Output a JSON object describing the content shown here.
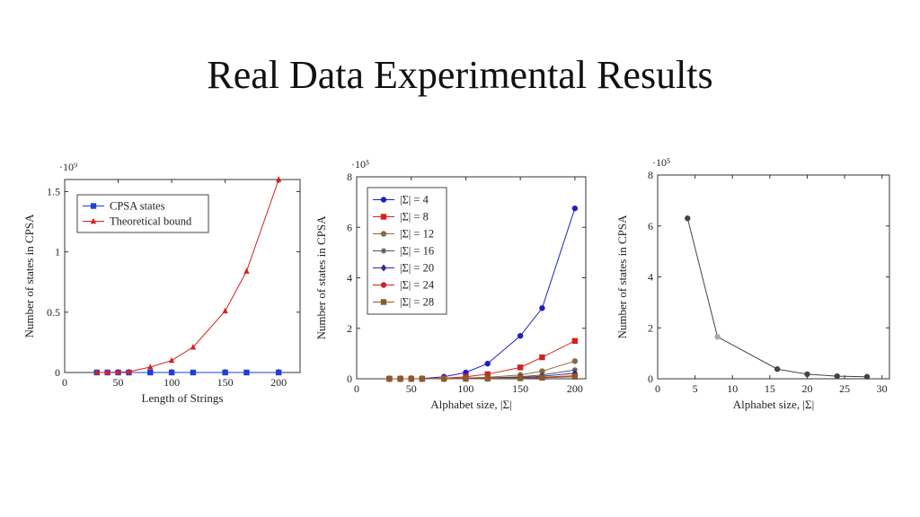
{
  "title": "Real Data Experimental Results",
  "chart_data": [
    {
      "type": "line",
      "xlabel": "Length of Strings",
      "ylabel": "Number of states in CPSA",
      "exponent_label": "·10⁹",
      "xlim": [
        0,
        220
      ],
      "ylim": [
        0,
        1.6
      ],
      "xticks": [
        0,
        50,
        100,
        150,
        200
      ],
      "xtick_labels": [
        "0",
        "50",
        "100",
        "150",
        "200"
      ],
      "yticks": [
        0,
        0.5,
        1,
        1.5
      ],
      "ytick_labels": [
        "0",
        "0.5",
        "1",
        "1.5"
      ],
      "legend_position": "top-left",
      "series": [
        {
          "name": "CPSA states",
          "color": "#1f3fd6",
          "marker": "square",
          "x": [
            30,
            40,
            50,
            60,
            80,
            100,
            120,
            150,
            170,
            200
          ],
          "y": [
            0,
            0,
            0,
            0,
            0,
            0,
            0,
            0,
            0,
            0
          ]
        },
        {
          "name": "Theoretical bound",
          "color": "#d42020",
          "marker": "triangle",
          "x": [
            30,
            40,
            50,
            60,
            80,
            100,
            120,
            150,
            170,
            200
          ],
          "y": [
            0.0004,
            0.0013,
            0.003,
            0.0064,
            0.0448,
            0.1,
            0.21,
            0.51,
            0.84,
            1.6
          ]
        }
      ]
    },
    {
      "type": "line",
      "xlabel": "Alphabet size, |Σ|",
      "ylabel": "Number of states in CPSA",
      "exponent_label": "·10⁵",
      "xlim": [
        0,
        210
      ],
      "ylim": [
        0,
        8
      ],
      "xticks": [
        0,
        50,
        100,
        150,
        200
      ],
      "xtick_labels": [
        "0",
        "50",
        "100",
        "150",
        "200"
      ],
      "yticks": [
        0,
        2,
        4,
        6,
        8
      ],
      "ytick_labels": [
        "0",
        "2",
        "4",
        "6",
        "8"
      ],
      "legend_position": "top-left",
      "series": [
        {
          "name": "|Σ| = 4",
          "color": "#1f1fc8",
          "marker": "circle",
          "x": [
            30,
            40,
            50,
            60,
            80,
            100,
            120,
            150,
            170,
            200
          ],
          "y": [
            0,
            0,
            0,
            0.01,
            0.08,
            0.25,
            0.6,
            1.7,
            2.8,
            6.75
          ]
        },
        {
          "name": "|Σ| = 8",
          "color": "#d42020",
          "marker": "square",
          "x": [
            30,
            40,
            50,
            60,
            80,
            100,
            120,
            150,
            170,
            200
          ],
          "y": [
            0,
            0,
            0,
            0,
            0.02,
            0.08,
            0.18,
            0.45,
            0.85,
            1.5
          ]
        },
        {
          "name": "|Σ| = 12",
          "color": "#8b6a3a",
          "marker": "circle",
          "x": [
            30,
            40,
            50,
            60,
            80,
            100,
            120,
            150,
            170,
            200
          ],
          "y": [
            0,
            0,
            0,
            0,
            0.01,
            0.03,
            0.06,
            0.15,
            0.3,
            0.7
          ]
        },
        {
          "name": "|Σ| = 16",
          "color": "#555555",
          "marker": "star",
          "x": [
            30,
            40,
            50,
            60,
            80,
            100,
            120,
            150,
            170,
            200
          ],
          "y": [
            0,
            0,
            0,
            0,
            0,
            0.01,
            0.03,
            0.08,
            0.15,
            0.35
          ]
        },
        {
          "name": "|Σ| = 20",
          "color": "#2a2a9a",
          "marker": "diamond",
          "x": [
            30,
            40,
            50,
            60,
            80,
            100,
            120,
            150,
            170,
            200
          ],
          "y": [
            0,
            0,
            0,
            0,
            0,
            0.01,
            0.02,
            0.05,
            0.1,
            0.22
          ]
        },
        {
          "name": "|Σ| = 24",
          "color": "#cc2222",
          "marker": "circle",
          "x": [
            30,
            40,
            50,
            60,
            80,
            100,
            120,
            150,
            170,
            200
          ],
          "y": [
            0,
            0,
            0,
            0,
            0,
            0,
            0.01,
            0.03,
            0.06,
            0.12
          ]
        },
        {
          "name": "|Σ| = 28",
          "color": "#8b5a2b",
          "marker": "square",
          "x": [
            30,
            40,
            50,
            60,
            80,
            100,
            120,
            150,
            170,
            200
          ],
          "y": [
            0,
            0,
            0,
            0,
            0,
            0,
            0.01,
            0.02,
            0.04,
            0.08
          ]
        }
      ]
    },
    {
      "type": "line",
      "xlabel": "Alphabet size, |Σ|",
      "ylabel": "Number of states in CPSA",
      "exponent_label": "·10⁵",
      "xlim": [
        0,
        31
      ],
      "ylim": [
        0,
        8
      ],
      "xticks": [
        0,
        5,
        10,
        15,
        20,
        25,
        30
      ],
      "xtick_labels": [
        "0",
        "5",
        "10",
        "15",
        "20",
        "25",
        "30"
      ],
      "yticks": [
        0,
        2,
        4,
        6,
        8
      ],
      "ytick_labels": [
        "0",
        "2",
        "4",
        "6",
        "8"
      ],
      "series": [
        {
          "color": "#444444",
          "marker": "circle",
          "x": [
            4,
            8,
            16,
            20,
            24,
            28
          ],
          "y": [
            6.3,
            1.65,
            0.38,
            0.18,
            0.1,
            0.08
          ]
        }
      ]
    }
  ]
}
